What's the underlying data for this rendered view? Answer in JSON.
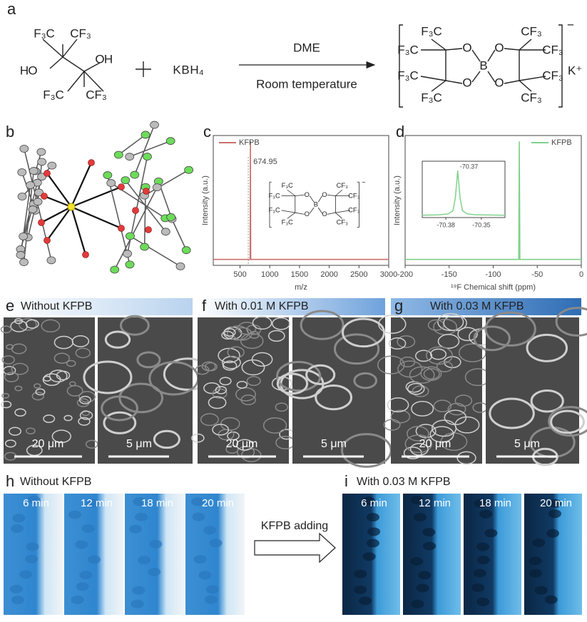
{
  "panel_labels": [
    "a",
    "b",
    "c",
    "d",
    "e",
    "f",
    "g",
    "h",
    "i"
  ],
  "scheme": {
    "reactant": [
      "F₃C",
      "CF₃",
      "H",
      "O",
      "O",
      "H",
      "F₃C",
      "CF₃"
    ],
    "plus": "+",
    "reagent": [
      "K",
      "B",
      "H₄"
    ],
    "solvent": "DME",
    "condition": "Room temperature",
    "product": {
      "groups": [
        "F₃C",
        "CF₃",
        "F₃C",
        "CF₃",
        "F₃C",
        "CF₃",
        "F₃C",
        "CF₃"
      ],
      "oxygens": [
        "O",
        "O",
        "O",
        "O"
      ],
      "boron": "B",
      "charge": "−",
      "counterion": "K⁺"
    }
  },
  "chart_data": [
    {
      "type": "line",
      "xlabel": "m/z",
      "ylabel": "Intensity (a.u.)",
      "xlim": [
        50,
        3000
      ],
      "ylim": [
        -5,
        105
      ],
      "xticks": [
        500,
        1000,
        1500,
        2000,
        2500,
        3000
      ],
      "legend": "top-left",
      "series": [
        {
          "name": "KFPB",
          "color": "#c9706b",
          "x": [
            50,
            670,
            674.95,
            680,
            3000
          ],
          "values": [
            0,
            0,
            100,
            0,
            0
          ]
        }
      ],
      "annotation": {
        "x": 674.95,
        "text": "674.95"
      }
    },
    {
      "type": "line",
      "xlabel": "¹⁹F Chemical shift (ppm)",
      "ylabel": "Intensity (a.u.)",
      "xlim": [
        -200,
        0
      ],
      "ylim": [
        -5,
        105
      ],
      "xticks": [
        -200,
        -150,
        -100,
        -50,
        0
      ],
      "legend": "top-right",
      "series": [
        {
          "name": "KFPB",
          "color": "#7fd18b",
          "x": [
            -200,
            -71,
            -70.37,
            -69.7,
            0
          ],
          "values": [
            0,
            0,
            100,
            0,
            0
          ]
        }
      ],
      "inset": {
        "xlim": [
          -70.4,
          -70.33
        ],
        "ylim": [
          0,
          105
        ],
        "xticks": [
          -70.38,
          -70.35
        ],
        "x": [
          -70.4,
          -70.385,
          -70.378,
          -70.374,
          -70.372,
          -70.37,
          -70.368,
          -70.366,
          -70.362,
          -70.355,
          -70.33
        ],
        "values": [
          2,
          3,
          5,
          12,
          40,
          100,
          40,
          12,
          5,
          3,
          2
        ],
        "annotation": {
          "x": -70.37,
          "text": "-70.37"
        }
      }
    }
  ],
  "sem": [
    {
      "title": "Without KFPB",
      "scale_bars": [
        "20 μm",
        "5 μm"
      ]
    },
    {
      "title": "With 0.01 M KFPB",
      "scale_bars": [
        "20 μm",
        "5 μm"
      ]
    },
    {
      "title": "With 0.03 M KFPB",
      "scale_bars": [
        "20 μm",
        "5 μm"
      ]
    }
  ],
  "optical": [
    {
      "title": "Without KFPB",
      "times": [
        "6 min",
        "12 min",
        "18 min",
        "20 min"
      ]
    },
    {
      "title": "With 0.03 M KFPB",
      "times": [
        "6 min",
        "12 min",
        "18 min",
        "20 min"
      ]
    }
  ],
  "process_arrow": "KFPB adding"
}
